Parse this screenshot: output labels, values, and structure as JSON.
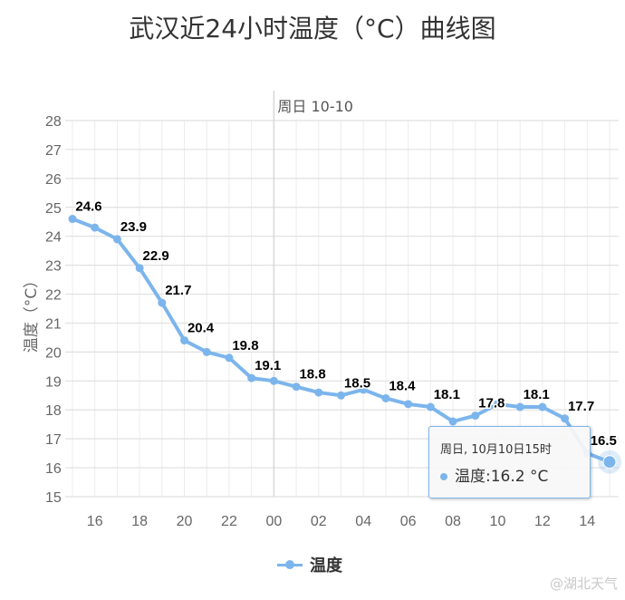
{
  "chart_data": {
    "type": "line",
    "title": "武汉近24小时温度（°C）曲线图",
    "xlabel": "",
    "ylabel": "温度（°C）",
    "ylim": [
      15,
      28
    ],
    "yticks": [
      15,
      16,
      17,
      18,
      19,
      20,
      21,
      22,
      23,
      24,
      25,
      26,
      27,
      28
    ],
    "xtick_labels": [
      "16",
      "18",
      "20",
      "22",
      "00",
      "02",
      "04",
      "06",
      "08",
      "10",
      "12",
      "14"
    ],
    "x": [
      "15",
      "16",
      "17",
      "18",
      "19",
      "20",
      "21",
      "22",
      "23",
      "00",
      "01",
      "02",
      "03",
      "04",
      "05",
      "06",
      "07",
      "08",
      "09",
      "10",
      "11",
      "12",
      "13",
      "14",
      "15"
    ],
    "series": [
      {
        "name": "温度",
        "color": "#7cb5ec",
        "values": [
          24.6,
          24.3,
          23.9,
          22.9,
          21.7,
          20.4,
          20.0,
          19.8,
          19.1,
          19.0,
          18.8,
          18.6,
          18.5,
          18.7,
          18.4,
          18.2,
          18.1,
          17.6,
          17.8,
          18.2,
          18.1,
          18.1,
          17.7,
          16.5,
          16.2
        ]
      }
    ],
    "data_labels": [
      {
        "index": 0,
        "text": "24.6"
      },
      {
        "index": 2,
        "text": "23.9"
      },
      {
        "index": 3,
        "text": "22.9"
      },
      {
        "index": 4,
        "text": "21.7"
      },
      {
        "index": 5,
        "text": "20.4"
      },
      {
        "index": 7,
        "text": "19.8"
      },
      {
        "index": 8,
        "text": "19.1"
      },
      {
        "index": 10,
        "text": "18.8"
      },
      {
        "index": 12,
        "text": "18.5"
      },
      {
        "index": 14,
        "text": "18.4"
      },
      {
        "index": 16,
        "text": "18.1"
      },
      {
        "index": 18,
        "text": "17.8"
      },
      {
        "index": 20,
        "text": "18.1"
      },
      {
        "index": 22,
        "text": "17.7"
      },
      {
        "index": 23,
        "text": "16.5"
      }
    ],
    "plot_band_label": "周日 10-10",
    "grid": true,
    "legend_position": "bottom"
  },
  "tooltip": {
    "header": "周日, 10月10日15时",
    "series_label": "温度",
    "value_text": "温度:16.2 °C"
  },
  "legend": {
    "label": "温度"
  },
  "watermark": "@湖北天气"
}
